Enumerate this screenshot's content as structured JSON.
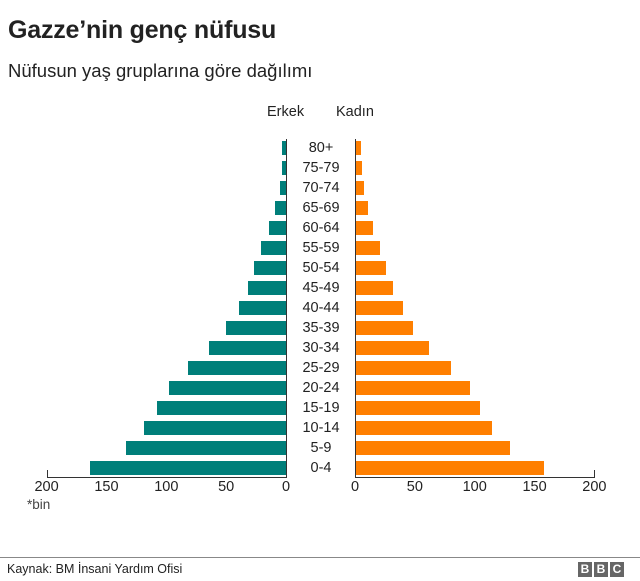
{
  "header": {
    "title": "Gazze’nin genç nüfusu",
    "subtitle": "Nüfusun yaş gruplarına göre dağılımı"
  },
  "legend": {
    "male": "Erkek",
    "female": "Kadın"
  },
  "axis": {
    "left_ticks": [
      "200",
      "150",
      "100",
      "50",
      "0"
    ],
    "right_ticks": [
      "0",
      "50",
      "100",
      "150",
      "200"
    ],
    "unit_note": "*bin"
  },
  "footer": {
    "source": "Kaynak: BM İnsani Yardım Ofisi",
    "logo": [
      "B",
      "B",
      "C"
    ]
  },
  "colors": {
    "male": "#007f7a",
    "female": "#ff7f00"
  },
  "chart_data": {
    "type": "bar",
    "subtype": "population-pyramid",
    "title": "Gazze’nin genç nüfusu",
    "subtitle": "Nüfusun yaş gruplarına göre dağılımı",
    "xlabel": "*bin",
    "ylabel": "",
    "xlim": [
      0,
      200
    ],
    "x_ticks": [
      0,
      50,
      100,
      150,
      200
    ],
    "grid": false,
    "legend_position": "top",
    "categories": [
      "80+",
      "75-79",
      "70-74",
      "65-69",
      "60-64",
      "55-59",
      "50-54",
      "45-49",
      "40-44",
      "35-39",
      "30-34",
      "25-29",
      "20-24",
      "15-19",
      "10-14",
      "5-9",
      "0-4"
    ],
    "series": [
      {
        "name": "Erkek",
        "color": "#007f7a",
        "values": [
          3,
          3,
          5,
          9,
          14,
          21,
          27,
          32,
          39,
          50,
          64,
          82,
          98,
          108,
          119,
          134,
          164
        ]
      },
      {
        "name": "Kadın",
        "color": "#ff7f00",
        "values": [
          4,
          5,
          7,
          10,
          14,
          20,
          25,
          31,
          39,
          48,
          61,
          79,
          95,
          104,
          114,
          129,
          157
        ]
      }
    ],
    "source": "Kaynak: BM İnsani Yardım Ofisi"
  }
}
